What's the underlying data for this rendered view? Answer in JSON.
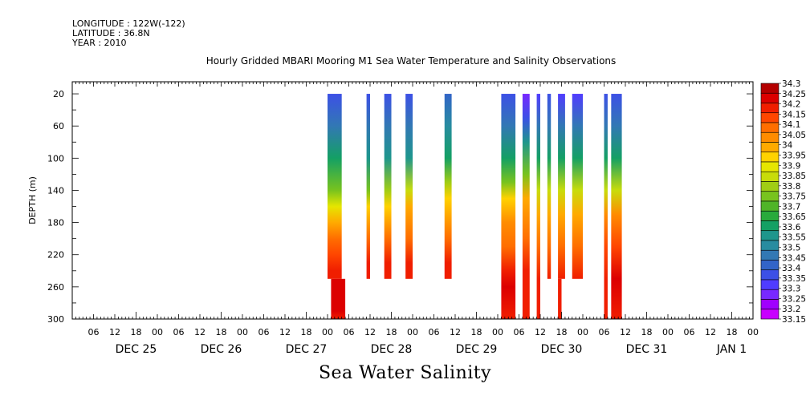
{
  "header": {
    "longitude": "LONGITUDE : 122W(-122)",
    "latitude": "LATITUDE : 36.8N",
    "year": "YEAR : 2010"
  },
  "footer_title": "Sea Water Salinity",
  "chart_data": {
    "type": "heatmap",
    "title": "Hourly Gridded MBARI Mooring M1 Sea Water Temperature and Salinity Observations",
    "xlabel": "",
    "ylabel": "DEPTH (m)",
    "x_hour_ticks": [
      "06",
      "12",
      "18",
      "00",
      "06",
      "12",
      "18",
      "00",
      "06",
      "12",
      "18",
      "00",
      "06",
      "12",
      "18",
      "00",
      "06",
      "12",
      "18",
      "00",
      "06",
      "12",
      "18",
      "00",
      "06",
      "12",
      "18",
      "00",
      "06",
      "12",
      "18",
      "00",
      "06"
    ],
    "x_day_labels": [
      "DEC 25",
      "DEC 26",
      "DEC 27",
      "DEC 28",
      "DEC 29",
      "DEC 30",
      "DEC 31",
      "JAN 1"
    ],
    "y_ticks": [
      20,
      60,
      100,
      140,
      180,
      220,
      260,
      300
    ],
    "ylim": [
      300,
      5
    ],
    "colorbar": {
      "levels": [
        33.15,
        33.2,
        33.25,
        33.3,
        33.35,
        33.4,
        33.45,
        33.5,
        33.55,
        33.6,
        33.65,
        33.7,
        33.75,
        33.8,
        33.85,
        33.9,
        33.95,
        34,
        34.05,
        34.1,
        34.15,
        34.2,
        34.25,
        34.3
      ],
      "labels": [
        "34.3",
        "34.25",
        "34.2",
        "34.15",
        "34.1",
        "34.05",
        "34",
        "33.95",
        "33.9",
        "33.85",
        "33.8",
        "33.75",
        "33.7",
        "33.65",
        "33.6",
        "33.55",
        "33.5",
        "33.45",
        "33.4",
        "33.35",
        "33.3",
        "33.25",
        "33.2",
        "33.15"
      ],
      "colors": [
        "#c800ff",
        "#a000ff",
        "#7828ff",
        "#503cff",
        "#3c50e6",
        "#3264c8",
        "#3278b4",
        "#288ca0",
        "#1e968c",
        "#14a064",
        "#28aa3c",
        "#50b428",
        "#78c31e",
        "#a0cd14",
        "#c8dc0a",
        "#e6e600",
        "#ffd200",
        "#ffaa00",
        "#ff8c00",
        "#ff6e00",
        "#ff4600",
        "#f01e00",
        "#dc0000",
        "#b40000"
      ]
    },
    "segments": [
      {
        "start_hour": 72,
        "end_hour": 76,
        "max_depth": 250,
        "profile": [
          [
            20,
            33.35
          ],
          [
            60,
            33.45
          ],
          [
            100,
            33.6
          ],
          [
            140,
            33.75
          ],
          [
            160,
            33.9
          ],
          [
            180,
            34.0
          ],
          [
            200,
            34.1
          ],
          [
            220,
            34.15
          ],
          [
            240,
            34.2
          ],
          [
            250,
            34.2
          ]
        ]
      },
      {
        "start_hour": 73,
        "end_hour": 77,
        "min_depth": 250,
        "max_depth": 300,
        "profile": [
          [
            250,
            34.25
          ],
          [
            270,
            34.25
          ],
          [
            290,
            34.25
          ],
          [
            300,
            34.2
          ]
        ]
      },
      {
        "start_hour": 83,
        "end_hour": 84,
        "max_depth": 250,
        "profile": [
          [
            20,
            33.35
          ],
          [
            60,
            33.45
          ],
          [
            100,
            33.55
          ],
          [
            140,
            33.75
          ],
          [
            160,
            33.95
          ],
          [
            200,
            34.1
          ],
          [
            230,
            34.2
          ],
          [
            250,
            34.2
          ]
        ]
      },
      {
        "start_hour": 88,
        "end_hour": 90,
        "max_depth": 250,
        "profile": [
          [
            20,
            33.35
          ],
          [
            60,
            33.45
          ],
          [
            100,
            33.55
          ],
          [
            140,
            33.8
          ],
          [
            160,
            33.95
          ],
          [
            200,
            34.1
          ],
          [
            230,
            34.2
          ],
          [
            250,
            34.2
          ]
        ]
      },
      {
        "start_hour": 94,
        "end_hour": 96,
        "max_depth": 250,
        "profile": [
          [
            20,
            33.35
          ],
          [
            60,
            33.45
          ],
          [
            100,
            33.55
          ],
          [
            140,
            33.85
          ],
          [
            160,
            34.0
          ],
          [
            200,
            34.1
          ],
          [
            230,
            34.2
          ],
          [
            250,
            34.2
          ]
        ]
      },
      {
        "start_hour": 105,
        "end_hour": 107,
        "max_depth": 250,
        "profile": [
          [
            20,
            33.4
          ],
          [
            60,
            33.5
          ],
          [
            100,
            33.6
          ],
          [
            130,
            33.8
          ],
          [
            150,
            33.95
          ],
          [
            200,
            34.1
          ],
          [
            230,
            34.2
          ],
          [
            250,
            34.2
          ]
        ]
      },
      {
        "start_hour": 121,
        "end_hour": 125,
        "max_depth": 300,
        "profile": [
          [
            20,
            33.35
          ],
          [
            60,
            33.45
          ],
          [
            100,
            33.6
          ],
          [
            130,
            33.75
          ],
          [
            150,
            33.95
          ],
          [
            180,
            34.05
          ],
          [
            210,
            34.1
          ],
          [
            240,
            34.2
          ],
          [
            260,
            34.25
          ],
          [
            300,
            34.2
          ]
        ]
      },
      {
        "start_hour": 127,
        "end_hour": 129,
        "max_depth": 300,
        "profile": [
          [
            20,
            33.25
          ],
          [
            50,
            33.35
          ],
          [
            80,
            33.55
          ],
          [
            120,
            33.75
          ],
          [
            150,
            34.0
          ],
          [
            200,
            34.1
          ],
          [
            240,
            34.2
          ],
          [
            300,
            34.2
          ]
        ]
      },
      {
        "start_hour": 131,
        "end_hour": 132,
        "max_depth": 300,
        "profile": [
          [
            20,
            33.3
          ],
          [
            60,
            33.45
          ],
          [
            100,
            33.6
          ],
          [
            140,
            33.85
          ],
          [
            170,
            34.0
          ],
          [
            210,
            34.1
          ],
          [
            250,
            34.2
          ],
          [
            300,
            34.2
          ]
        ]
      },
      {
        "start_hour": 134,
        "end_hour": 135,
        "max_depth": 250,
        "profile": [
          [
            20,
            33.35
          ],
          [
            60,
            33.45
          ],
          [
            100,
            33.6
          ],
          [
            140,
            33.85
          ],
          [
            170,
            34.0
          ],
          [
            210,
            34.1
          ],
          [
            250,
            34.2
          ]
        ]
      },
      {
        "start_hour": 137,
        "end_hour": 139,
        "max_depth": 250,
        "profile": [
          [
            20,
            33.3
          ],
          [
            60,
            33.45
          ],
          [
            100,
            33.6
          ],
          [
            140,
            33.85
          ],
          [
            170,
            34.0
          ],
          [
            210,
            34.1
          ],
          [
            250,
            34.2
          ]
        ]
      },
      {
        "start_hour": 137,
        "end_hour": 138,
        "min_depth": 250,
        "max_depth": 300,
        "profile": [
          [
            250,
            34.2
          ],
          [
            300,
            34.2
          ]
        ]
      },
      {
        "start_hour": 141,
        "end_hour": 144,
        "max_depth": 250,
        "profile": [
          [
            20,
            33.3
          ],
          [
            60,
            33.45
          ],
          [
            100,
            33.6
          ],
          [
            140,
            33.85
          ],
          [
            170,
            34.0
          ],
          [
            210,
            34.1
          ],
          [
            250,
            34.2
          ]
        ]
      },
      {
        "start_hour": 150,
        "end_hour": 151,
        "max_depth": 300,
        "profile": [
          [
            20,
            33.35
          ],
          [
            60,
            33.45
          ],
          [
            100,
            33.6
          ],
          [
            140,
            33.85
          ],
          [
            170,
            34.05
          ],
          [
            210,
            34.15
          ],
          [
            250,
            34.2
          ],
          [
            300,
            34.2
          ]
        ]
      },
      {
        "start_hour": 152,
        "end_hour": 155,
        "max_depth": 300,
        "profile": [
          [
            20,
            33.35
          ],
          [
            60,
            33.45
          ],
          [
            100,
            33.6
          ],
          [
            140,
            33.85
          ],
          [
            170,
            34.05
          ],
          [
            210,
            34.15
          ],
          [
            250,
            34.25
          ],
          [
            300,
            34.2
          ]
        ]
      }
    ]
  }
}
